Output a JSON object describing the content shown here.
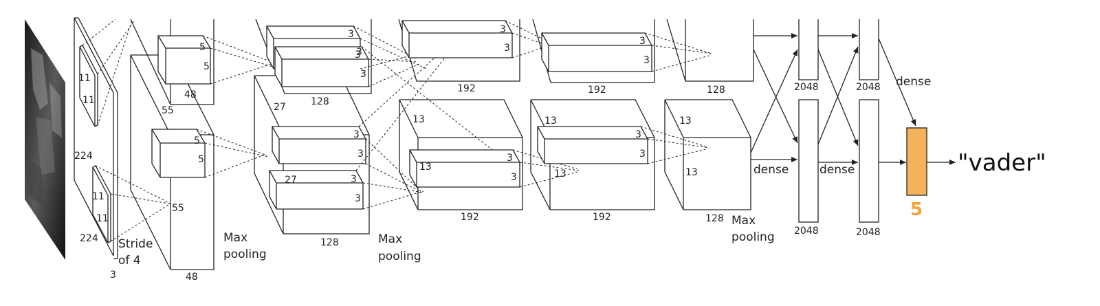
{
  "colors": {
    "stroke": "#222222",
    "output_fill": "#f2b35b",
    "output_label": "#f2a33a"
  },
  "input_image": {
    "icon": "darth-vader-photo"
  },
  "input_layer": {
    "label_224_side": "224",
    "label_224_bottom": "224",
    "label_depth": "3",
    "kernel_top_a": "11",
    "kernel_top_b": "11",
    "kernel_bot_a": "11",
    "kernel_bot_b": "11",
    "stride_line1": "Stride",
    "stride_line2": "of 4"
  },
  "conv1": {
    "label_55_a": "55",
    "label_55_b": "55",
    "label_48_top": "48",
    "label_48_bottom": "48",
    "k_top_a": "5",
    "k_top_b": "5",
    "k_bot_a": "5",
    "k_bot_b": "5",
    "pool_line1": "Max",
    "pool_line2": "pooling"
  },
  "conv2": {
    "label_27_a": "27",
    "label_27_b": "27",
    "label_128_top": "128",
    "label_128_bottom": "128",
    "k_top_a": "3",
    "k_top_b": "3",
    "k_top_c": "3",
    "k_top_d": "3",
    "k_bot_a": "3",
    "k_bot_b": "3",
    "k_bot_c": "3",
    "k_bot_d": "3",
    "pool_line1": "Max",
    "pool_line2": "pooling"
  },
  "conv3": {
    "label_192_top": "192",
    "label_192_bottom": "192",
    "label_13_a": "13",
    "label_13_b": "13",
    "k_top_a": "3",
    "k_top_b": "3",
    "k_bot_a": "3",
    "k_bot_b": "3"
  },
  "conv4": {
    "label_192_top": "192",
    "label_192_bottom": "192",
    "label_13_a": "13",
    "label_13_b": "13",
    "k_top_a": "3",
    "k_top_b": "3",
    "k_bot_a": "3",
    "k_bot_b": "3"
  },
  "conv5": {
    "label_128_top": "128",
    "label_128_bottom": "128",
    "label_13_a": "13",
    "label_13_b": "13",
    "pool_line1": "Max",
    "pool_line2": "pooling"
  },
  "dense": {
    "fc1_top": "2048",
    "fc1_bottom": "2048",
    "fc2_top": "2048",
    "fc2_bottom": "2048",
    "dense_a": "dense",
    "dense_b": "dense",
    "dense_c": "dense"
  },
  "output": {
    "size_label": "5",
    "prediction": "\"vader\""
  }
}
